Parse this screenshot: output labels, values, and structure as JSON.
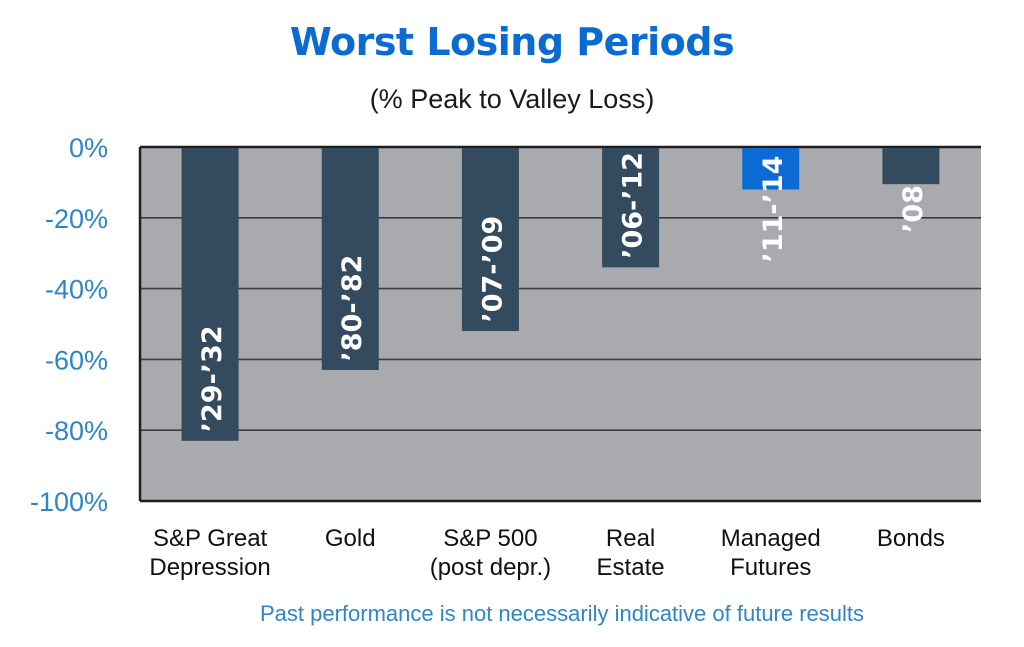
{
  "chart_data": {
    "type": "bar",
    "title": "Worst Losing Periods",
    "subtitle": "(% Peak to Valley Loss)",
    "categories": [
      [
        "S&P Great",
        "Depression"
      ],
      [
        "Gold"
      ],
      [
        "S&P 500",
        "(post depr.)"
      ],
      [
        "Real",
        "Estate"
      ],
      [
        "Managed",
        "Futures"
      ],
      [
        "Bonds"
      ]
    ],
    "values": [
      -83,
      -63,
      -52,
      -34,
      -12,
      -10.5
    ],
    "period_labels": [
      "’29-’32",
      "’80-’82",
      "’07-’09",
      "’06-’12",
      "’11-’14",
      "’08"
    ],
    "bar_colors": [
      "#344a5e",
      "#344a5e",
      "#344a5e",
      "#344a5e",
      "#0b6ad3",
      "#344a5e"
    ],
    "yticks": [
      "0%",
      "-20%",
      "-40%",
      "-60%",
      "-80%",
      "-100%"
    ],
    "ytick_values": [
      0,
      -20,
      -40,
      -60,
      -80,
      -100
    ],
    "ylim": [
      -100,
      0
    ],
    "xlabel": "",
    "ylabel": "",
    "grid": true,
    "plot_background": "#a9aaad",
    "tick_color": "#2f86c7"
  },
  "footnote": "Past performance is not necessarily indicative of future results"
}
